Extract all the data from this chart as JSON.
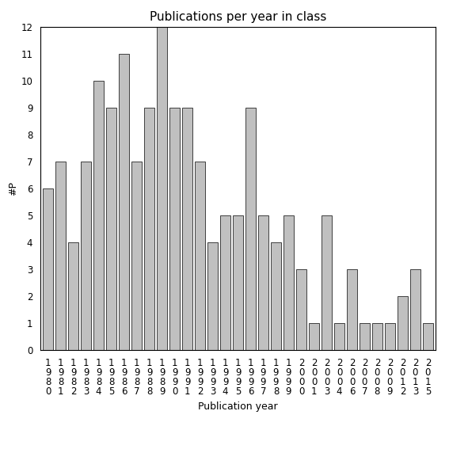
{
  "title": "Publications per year in class",
  "xlabel": "Publication year",
  "ylabel": "#P",
  "bar_color": "#c0c0c0",
  "edge_color": "#000000",
  "background_color": "#ffffff",
  "years": [
    "1980",
    "1981",
    "1982",
    "1983",
    "1984",
    "1985",
    "1986",
    "1987",
    "1988",
    "1989",
    "1990",
    "1991",
    "1992",
    "1993",
    "1994",
    "1995",
    "1996",
    "1997",
    "1998",
    "1999",
    "2000",
    "2001",
    "2003",
    "2004",
    "2006",
    "2007",
    "2008",
    "2009",
    "2012",
    "2013",
    "2015"
  ],
  "values": [
    6,
    7,
    4,
    7,
    10,
    9,
    11,
    7,
    9,
    12,
    9,
    9,
    7,
    4,
    5,
    5,
    9,
    5,
    4,
    5,
    3,
    1,
    5,
    1,
    3,
    1,
    1,
    1,
    2,
    3,
    1
  ],
  "ylim": [
    0,
    12
  ],
  "yticks": [
    0,
    1,
    2,
    3,
    4,
    5,
    6,
    7,
    8,
    9,
    10,
    11,
    12
  ],
  "title_fontsize": 11,
  "label_fontsize": 9,
  "tick_fontsize": 8.5
}
